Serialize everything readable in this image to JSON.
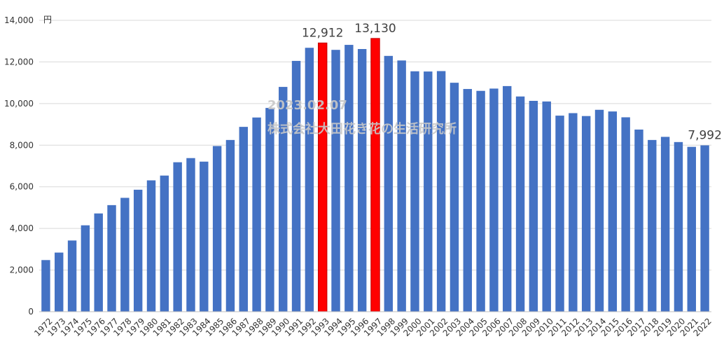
{
  "chart_data": {
    "type": "bar",
    "unit": "円",
    "ylim": [
      0,
      14000
    ],
    "yticks": [
      0,
      2000,
      4000,
      6000,
      8000,
      10000,
      12000,
      14000
    ],
    "ytick_labels": [
      "0",
      "2,000",
      "4,000",
      "6,000",
      "8,000",
      "10,000",
      "12,000",
      "14,000"
    ],
    "grid": true,
    "legend": "none",
    "categories": [
      "1972",
      "1973",
      "1974",
      "1975",
      "1976",
      "1977",
      "1978",
      "1979",
      "1980",
      "1981",
      "1982",
      "1983",
      "1984",
      "1985",
      "1986",
      "1987",
      "1988",
      "1989",
      "1990",
      "1991",
      "1992",
      "1993",
      "1994",
      "1995",
      "1996",
      "1997",
      "1998",
      "1999",
      "2000",
      "2001",
      "2002",
      "2003",
      "2004",
      "2005",
      "2006",
      "2007",
      "2008",
      "2009",
      "2010",
      "2011",
      "2012",
      "2013",
      "2014",
      "2015",
      "2016",
      "2017",
      "2018",
      "2019",
      "2020",
      "2021",
      "2022"
    ],
    "values": [
      2480,
      2840,
      3420,
      4150,
      4720,
      5120,
      5470,
      5860,
      6310,
      6540,
      7180,
      7380,
      7210,
      7960,
      8250,
      8880,
      9330,
      9790,
      10800,
      12050,
      12680,
      12912,
      12580,
      12820,
      12620,
      13130,
      12290,
      12070,
      11550,
      11540,
      11560,
      11000,
      10700,
      10610,
      10720,
      10840,
      10340,
      10130,
      10100,
      9420,
      9540,
      9400,
      9700,
      9620,
      9340,
      8750,
      8250,
      8400,
      8150,
      7920,
      7992
    ],
    "highlighted_indices": [
      21,
      25
    ],
    "data_labels": [
      {
        "index": 21,
        "text": "12,912"
      },
      {
        "index": 25,
        "text": "13,130"
      },
      {
        "index": 50,
        "text": "7,992"
      }
    ],
    "colors": {
      "bar": "#4472C4",
      "highlight": "#FF0000",
      "highlight_stroke": "#C00000",
      "grid": "#D9D9D9",
      "axis": "#BFBFBF"
    }
  },
  "watermark": {
    "date": "2023.02.07",
    "org": "株式会社大田花き花の生活研究所"
  }
}
